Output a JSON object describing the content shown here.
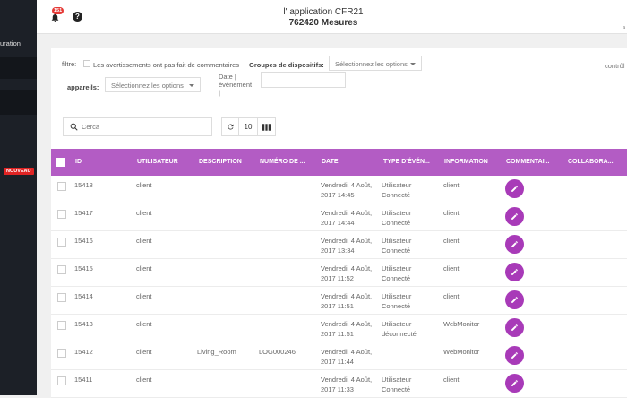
{
  "sidebar": {
    "item_label": "uration",
    "badge": "NOUVEAU"
  },
  "header": {
    "notification_count": "151",
    "help_symbol": "?",
    "title": "l' application CFR21",
    "subtitle": "762420 Mesures",
    "corner_text": "a"
  },
  "filters": {
    "label": "filtre:",
    "no_comment_warnings": "Les avertissements ont pas fait de commentaires",
    "device_groups_label": "Groupes de dispositifs:",
    "device_groups_placeholder": "Sélectionnez les options",
    "devices_label": "appareils:",
    "devices_placeholder": "Sélectionnez les options",
    "event_date_label": [
      "Date |",
      "événement",
      "|"
    ],
    "controls_label": "contrôl"
  },
  "toolbar": {
    "search_placeholder": "Cerca",
    "page_size": "10"
  },
  "table": {
    "columns": [
      "ID",
      "UTILISATEUR",
      "DESCRIPTION",
      "NUMÉRO DE ...",
      "DATE",
      "TYPE D'ÉVÉN...",
      "INFORMATION",
      "COMMENTAI...",
      "COLLABORA..."
    ],
    "rows": [
      {
        "id": "15418",
        "user": "client",
        "description": "",
        "number": "",
        "date1": "Vendredi, 4 Août,",
        "date2": "2017 14:45",
        "type1": "Utilisateur",
        "type2": "Connecté",
        "info": "client"
      },
      {
        "id": "15417",
        "user": "client",
        "description": "",
        "number": "",
        "date1": "Vendredi, 4 Août,",
        "date2": "2017 14:44",
        "type1": "Utilisateur",
        "type2": "Connecté",
        "info": "client"
      },
      {
        "id": "15416",
        "user": "client",
        "description": "",
        "number": "",
        "date1": "Vendredi, 4 Août,",
        "date2": "2017 13:34",
        "type1": "Utilisateur",
        "type2": "Connecté",
        "info": "client"
      },
      {
        "id": "15415",
        "user": "client",
        "description": "",
        "number": "",
        "date1": "Vendredi, 4 Août,",
        "date2": "2017 11:52",
        "type1": "Utilisateur",
        "type2": "Connecté",
        "info": "client"
      },
      {
        "id": "15414",
        "user": "client",
        "description": "",
        "number": "",
        "date1": "Vendredi, 4 Août,",
        "date2": "2017 11:51",
        "type1": "Utilisateur",
        "type2": "Connecté",
        "info": "client"
      },
      {
        "id": "15413",
        "user": "client",
        "description": "",
        "number": "",
        "date1": "Vendredi, 4 Août,",
        "date2": "2017 11:51",
        "type1": "Utilisateur",
        "type2": "déconnecté",
        "info": "WebMonitor"
      },
      {
        "id": "15412",
        "user": "client",
        "description": "Living_Room",
        "number": "LOG000246",
        "date1": "Vendredi, 4 Août,",
        "date2": "2017 11:44",
        "type1": "",
        "type2": "",
        "info": "WebMonitor"
      },
      {
        "id": "15411",
        "user": "client",
        "description": "",
        "number": "",
        "date1": "Vendredi, 4 Août,",
        "date2": "2017 11:33",
        "type1": "Utilisateur",
        "type2": "Connecté",
        "info": "client"
      }
    ]
  },
  "colors": {
    "header_purple": "#b35cc4",
    "edit_button": "#a83ab8",
    "sidebar_bg": "#1c2027",
    "badge_red": "#e02424"
  },
  "icons": {
    "notifications": "bell-icon",
    "help": "help-icon",
    "search": "search-icon",
    "refresh": "refresh-icon",
    "columns": "columns-icon",
    "edit": "pencil-icon"
  }
}
